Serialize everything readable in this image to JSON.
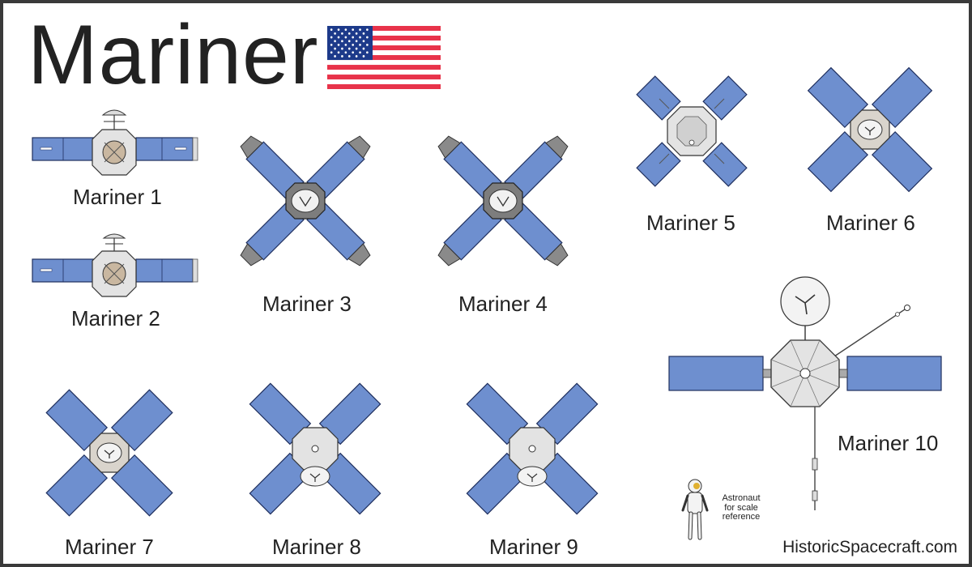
{
  "title": "Mariner",
  "credit": "HistoricSpacecraft.com",
  "flag_name": "united-states-flag",
  "colors": {
    "panel": "#6e8fcf",
    "panel_edge": "#1f2f5e",
    "body": "#e3e3e3",
    "shade": "#8a8a8a",
    "flag_red": "#e8334a",
    "flag_blue": "#1d3a8a",
    "frame": "#3a3a3a"
  },
  "spacecraft": [
    {
      "id": "mariner-1",
      "label": "Mariner 1"
    },
    {
      "id": "mariner-2",
      "label": "Mariner 2"
    },
    {
      "id": "mariner-3",
      "label": "Mariner 3"
    },
    {
      "id": "mariner-4",
      "label": "Mariner 4"
    },
    {
      "id": "mariner-5",
      "label": "Mariner 5"
    },
    {
      "id": "mariner-6",
      "label": "Mariner 6"
    },
    {
      "id": "mariner-7",
      "label": "Mariner 7"
    },
    {
      "id": "mariner-8",
      "label": "Mariner 8"
    },
    {
      "id": "mariner-9",
      "label": "Mariner 9"
    },
    {
      "id": "mariner-10",
      "label": "Mariner 10"
    }
  ],
  "astronaut": {
    "label_line1": "Astronaut",
    "label_line2": "for scale",
    "label_line3": "reference"
  }
}
